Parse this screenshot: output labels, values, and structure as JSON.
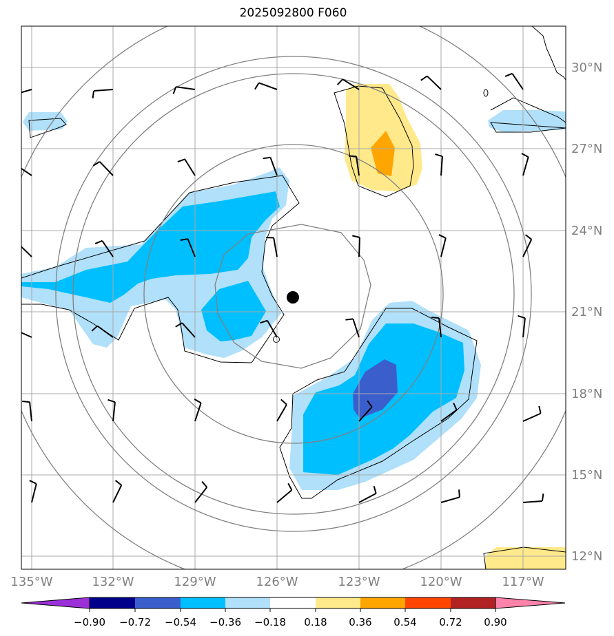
{
  "title": "2025092800 F060",
  "lat_labels": [
    "30°N",
    "27°N",
    "24°N",
    "21°N",
    "18°N",
    "15°N",
    "12°N"
  ],
  "lon_labels": [
    "135°W",
    "132°W",
    "129°W",
    "126°W",
    "123°W",
    "120°W",
    "117°W"
  ],
  "colorbar": {
    "tick_labels": [
      "−0.90",
      "−0.72",
      "−0.54",
      "−0.36",
      "−0.18",
      "0.18",
      "0.36",
      "0.54",
      "0.72",
      "0.90"
    ],
    "colors": [
      "#9b30d9",
      "#00008b",
      "#3a5fcd",
      "#00bfff",
      "#b0e0fa",
      "#ffffff",
      "#ffe98a",
      "#ffa500",
      "#ff4500",
      "#b22222",
      "#ff82ab"
    ]
  },
  "colors": {
    "graticule": "#a9a9a9",
    "range_rings": "#808080",
    "coastline": "#000000",
    "storm_center": "#000000",
    "axis_label": "#808080"
  },
  "storm_center_marker": "filled-circle",
  "wind_barb_rows": 7,
  "wind_barb_cols": 7
}
